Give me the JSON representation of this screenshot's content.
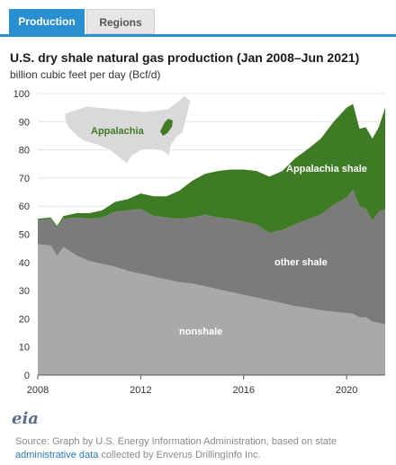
{
  "tabs": [
    {
      "label": "Production",
      "active": true
    },
    {
      "label": "Regions",
      "active": false
    }
  ],
  "logo_text": "eia",
  "source": {
    "prefix": "Source: Graph by U.S. Energy Information Administration, based on state",
    "link_text": "administrative data",
    "suffix": "collected by Enverus DrillingInfo Inc."
  },
  "colors": {
    "tab_active": "#2a8fd0",
    "nonshale": "#a9a9a9",
    "other_shale": "#7b7b7b",
    "appalachia_shale": "#3f7a24",
    "map_land": "#d9d9d9",
    "map_highlight": "#3f7a24"
  },
  "chart_data": {
    "type": "area",
    "stacked": true,
    "title": "U.S. dry shale natural gas production (Jan 2008–Jun 2021)",
    "subtitle": "billion cubic feet per day (Bcf/d)",
    "xlabel": "",
    "ylabel": "",
    "ylim": [
      0,
      100
    ],
    "yticks": [
      0,
      10,
      20,
      30,
      40,
      50,
      60,
      70,
      80,
      90,
      100
    ],
    "xlim": [
      2008.0,
      2021.5
    ],
    "xticks": [
      2008,
      2012,
      2016,
      2020
    ],
    "x": [
      2008.0,
      2008.5,
      2008.75,
      2009.0,
      2009.5,
      2010.0,
      2010.5,
      2011.0,
      2011.5,
      2012.0,
      2012.5,
      2013.0,
      2013.5,
      2014.0,
      2014.5,
      2015.0,
      2015.5,
      2016.0,
      2016.5,
      2017.0,
      2017.5,
      2018.0,
      2018.5,
      2019.0,
      2019.5,
      2020.0,
      2020.25,
      2020.5,
      2020.75,
      2021.0,
      2021.25,
      2021.5
    ],
    "series": [
      {
        "name": "nonshale",
        "values": [
          46.5,
          46.0,
          42.5,
          45.5,
          42.5,
          40.5,
          39.5,
          38.5,
          37.0,
          36.0,
          35.0,
          34.0,
          33.0,
          32.5,
          31.5,
          30.5,
          29.5,
          28.5,
          27.5,
          26.5,
          25.5,
          24.5,
          23.8,
          23.0,
          22.5,
          22.0,
          21.8,
          20.5,
          20.5,
          19.0,
          18.5,
          18.0
        ]
      },
      {
        "name": "other shale",
        "values": [
          8.5,
          9.5,
          10.0,
          10.0,
          13.5,
          15.0,
          16.5,
          19.5,
          21.5,
          23.0,
          21.5,
          22.0,
          22.5,
          23.5,
          25.5,
          25.5,
          26.0,
          26.0,
          26.0,
          24.0,
          26.0,
          29.0,
          31.5,
          34.0,
          38.0,
          41.0,
          44.0,
          39.5,
          38.5,
          36.0,
          39.5,
          41.0
        ]
      },
      {
        "name": "Appalachia shale",
        "values": [
          0.5,
          0.5,
          0.5,
          1.0,
          1.5,
          2.0,
          2.5,
          3.5,
          4.0,
          5.5,
          7.0,
          7.5,
          10.0,
          13.0,
          14.5,
          16.5,
          17.5,
          18.5,
          19.0,
          20.0,
          21.0,
          23.5,
          25.0,
          27.0,
          29.5,
          32.0,
          30.5,
          27.5,
          29.0,
          29.0,
          30.0,
          36.0
        ]
      }
    ],
    "labels": [
      "Appalachia shale",
      "other shale",
      "nonshale"
    ],
    "inset_map_label": "Appalachia"
  }
}
